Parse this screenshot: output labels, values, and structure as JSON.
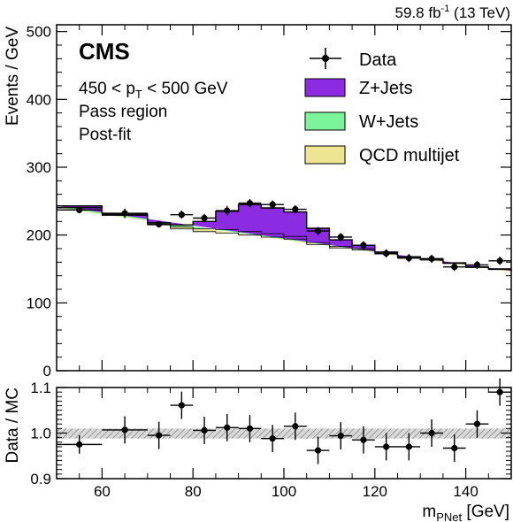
{
  "header": {
    "lumi_value": "59.8 fb",
    "lumi_exp": "-1",
    "lumi_energy": "(13 TeV)"
  },
  "labels": {
    "cms": "CMS",
    "pt_prefix": "450 < p",
    "pt_sub": "T",
    "pt_suffix": " < 500 GeV",
    "region": "Pass region",
    "fit": "Post-fit"
  },
  "colors": {
    "zjets": "#8b2be2",
    "wjets": "#7cf59a",
    "qcd": "#ede592",
    "uncertainty_band": "#9a9a9a",
    "data": "#000000"
  },
  "chart_data": [
    {
      "type": "area",
      "stacked": true,
      "bin_edges": [
        50,
        60,
        70,
        75,
        80,
        85,
        90,
        95,
        100,
        105,
        110,
        115,
        120,
        125,
        130,
        135,
        140,
        145,
        150
      ],
      "xlim": [
        50,
        150
      ],
      "ylim": [
        0,
        510
      ],
      "yticks": [
        0,
        100,
        200,
        300,
        400,
        500
      ],
      "ylabel": "Events / GeV",
      "series": [
        {
          "name": "QCD multijet",
          "values": [
            240,
            229,
            215,
            209,
            205,
            203,
            200,
            197,
            194,
            186,
            181,
            178,
            172,
            166,
            163,
            158,
            152,
            149,
            146
          ]
        },
        {
          "name": "W+Jets",
          "values": [
            1,
            1,
            1,
            3,
            4,
            5,
            5,
            5,
            4,
            3,
            2,
            2,
            1,
            1,
            1,
            1,
            1,
            1,
            1
          ]
        },
        {
          "name": "Z+Jets",
          "values": [
            2,
            1,
            2,
            3,
            11,
            27,
            40,
            38,
            36,
            21,
            10,
            5,
            2,
            1,
            1,
            0,
            0,
            0,
            0
          ]
        }
      ],
      "data_points": {
        "name": "Data",
        "x": [
          55,
          65,
          72.5,
          77.5,
          82.5,
          87.5,
          92.5,
          97.5,
          102.5,
          107.5,
          112.5,
          117.5,
          122.5,
          127.5,
          132.5,
          137.5,
          142.5,
          147.5
        ],
        "y": [
          237,
          232,
          216,
          230,
          225,
          236,
          247,
          245,
          238,
          206,
          197,
          185,
          173,
          166,
          165,
          153,
          156,
          162
        ],
        "yerr": [
          5,
          7,
          5,
          6,
          6,
          7,
          6,
          6,
          6,
          6,
          6,
          6,
          6,
          6,
          6,
          6,
          6,
          6
        ]
      },
      "legend": {
        "placement": "top-right",
        "entries": [
          "Data",
          "Z+Jets",
          "W+Jets",
          "QCD multijet"
        ]
      }
    },
    {
      "type": "scatter",
      "xlim": [
        50,
        150
      ],
      "xticks": [
        60,
        80,
        100,
        120,
        140
      ],
      "ylim": [
        0.9,
        1.1
      ],
      "yticks": [
        0.9,
        1.0,
        1.1
      ],
      "ytick_labels": [
        "0.9",
        "1.0",
        "1.1"
      ],
      "xlabel_main": "m",
      "xlabel_sub": "PNet",
      "xlabel_unit": " [GeV]",
      "ylabel": "Data / MC",
      "band": {
        "low": 0.988,
        "high": 1.01
      },
      "x": [
        55,
        65,
        72.5,
        77.5,
        82.5,
        87.5,
        92.5,
        97.5,
        102.5,
        107.5,
        112.5,
        117.5,
        122.5,
        127.5,
        132.5,
        137.5,
        142.5,
        147.5
      ],
      "xerr": [
        5,
        5,
        2.5,
        2.5,
        2.5,
        2.5,
        2.5,
        2.5,
        2.5,
        2.5,
        2.5,
        2.5,
        2.5,
        2.5,
        2.5,
        2.5,
        2.5,
        2.5
      ],
      "y": [
        0.975,
        1.007,
        0.995,
        1.061,
        1.006,
        1.012,
        1.01,
        0.988,
        1.015,
        0.962,
        0.994,
        0.985,
        0.97,
        0.97,
        1.0,
        0.967,
        1.02,
        1.09
      ],
      "yerr": [
        0.02,
        0.03,
        0.03,
        0.03,
        0.03,
        0.03,
        0.03,
        0.03,
        0.03,
        0.03,
        0.03,
        0.03,
        0.03,
        0.03,
        0.03,
        0.03,
        0.03,
        0.03
      ]
    }
  ]
}
